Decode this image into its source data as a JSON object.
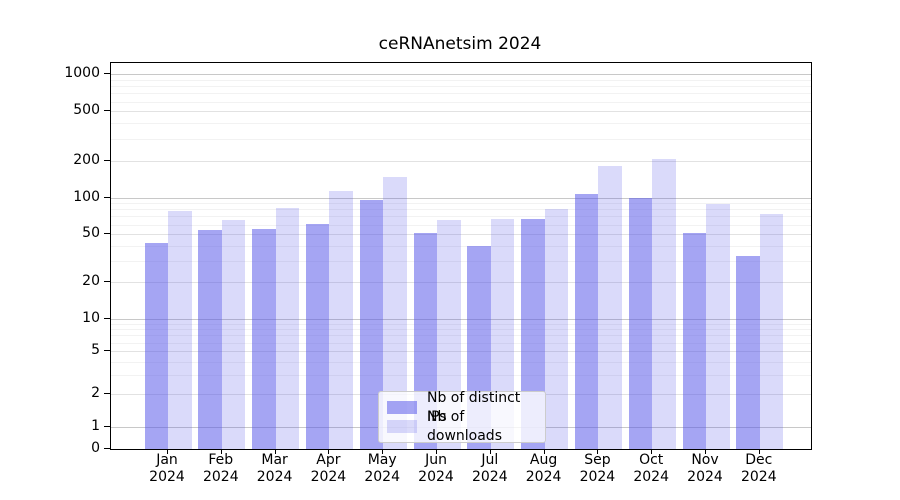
{
  "chart_data": {
    "type": "bar",
    "title": "ceRNAnetsim 2024",
    "categories": [
      "Jan",
      "Feb",
      "Mar",
      "Apr",
      "May",
      "Jun",
      "Jul",
      "Aug",
      "Sep",
      "Oct",
      "Nov",
      "Dec"
    ],
    "x_tick_year": "2024",
    "series": [
      {
        "name": "Nb of distinct IPs",
        "color": "rgba(82,82,232,0.52)",
        "values": [
          42,
          54,
          55,
          61,
          95,
          51,
          40,
          67,
          107,
          100,
          51,
          33
        ]
      },
      {
        "name": "Nb of downloads",
        "color": "rgba(82,82,232,0.21)",
        "values": [
          78,
          66,
          82,
          114,
          148,
          66,
          67,
          81,
          181,
          207,
          88,
          74
        ]
      }
    ],
    "yscale": "symlog",
    "ylim": [
      0,
      1000
    ],
    "y_ticks": [
      0,
      1,
      2,
      5,
      10,
      20,
      50,
      100,
      200,
      500,
      1000
    ],
    "grid": true,
    "legend_position": "lower center",
    "colors": {
      "decade_gridline": "#c8c8c8",
      "labeled_gridline": "#e2e2e2",
      "minor_gridline": "#f2f2f2",
      "spine": "#000000"
    }
  }
}
